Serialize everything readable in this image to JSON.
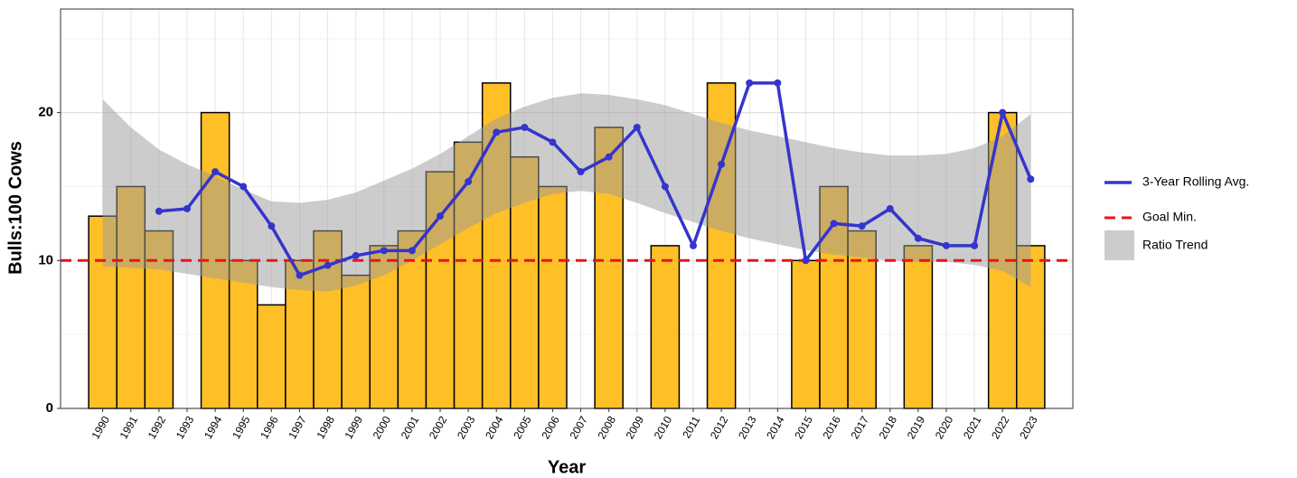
{
  "chart_data": {
    "type": "bar",
    "x_label": "Year",
    "y_label": "Bulls:100 Cows",
    "categories": [
      "1990",
      "1991",
      "1992",
      "1993",
      "1994",
      "1995",
      "1996",
      "1997",
      "1998",
      "1999",
      "2000",
      "2001",
      "2002",
      "2003",
      "2004",
      "2005",
      "2006",
      "2007",
      "2008",
      "2009",
      "2010",
      "2011",
      "2012",
      "2013",
      "2014",
      "2015",
      "2016",
      "2017",
      "2018",
      "2019",
      "2020",
      "2021",
      "2022",
      "2023"
    ],
    "values": [
      13,
      15,
      12,
      null,
      20,
      10,
      7,
      10,
      12,
      9,
      11,
      12,
      16,
      18,
      22,
      17,
      15,
      null,
      19,
      null,
      11,
      null,
      22,
      null,
      null,
      10,
      15,
      12,
      null,
      11,
      null,
      null,
      20,
      11
    ],
    "color": "#FFBF27",
    "ylim": [
      0,
      27
    ],
    "yticks": [
      0,
      10,
      20
    ],
    "minor_yticks": [
      5,
      15,
      25
    ],
    "grid": true,
    "legend": "right",
    "series": [
      {
        "name": "3-Year Rolling Avg.",
        "type": "line",
        "color": "#3535CC",
        "values": [
          null,
          null,
          13.33,
          13.5,
          16,
          15,
          12.33,
          9,
          9.67,
          10.33,
          10.67,
          10.67,
          13,
          15.33,
          18.67,
          19,
          18,
          16,
          17,
          19,
          15,
          11,
          16.5,
          22,
          22,
          10,
          12.5,
          12.33,
          13.5,
          11.5,
          11,
          11,
          20,
          15.5
        ]
      },
      {
        "name": "Ratio Trend",
        "type": "ribbon",
        "color": "#999999",
        "upper": [
          20.9,
          19.0,
          17.5,
          16.5,
          15.7,
          14.8,
          14.0,
          13.9,
          14.1,
          14.6,
          15.4,
          16.2,
          17.2,
          18.4,
          19.6,
          20.4,
          21.0,
          21.3,
          21.2,
          20.9,
          20.5,
          19.9,
          19.3,
          18.8,
          18.4,
          18.0,
          17.6,
          17.3,
          17.1,
          17.1,
          17.2,
          17.6,
          18.4,
          19.9
        ],
        "lower": [
          9.6,
          9.5,
          9.4,
          9.1,
          8.8,
          8.5,
          8.2,
          8.0,
          7.9,
          8.3,
          9.0,
          10.0,
          11.1,
          12.2,
          13.2,
          13.9,
          14.5,
          14.7,
          14.5,
          13.9,
          13.2,
          12.6,
          12.0,
          11.5,
          11.1,
          10.7,
          10.4,
          10.2,
          10.0,
          9.9,
          9.9,
          9.7,
          9.3,
          8.2
        ]
      }
    ],
    "reference_lines": [
      {
        "name": "Goal Min.",
        "color": "#E8141B",
        "value": 10,
        "dashed": true
      }
    ]
  }
}
